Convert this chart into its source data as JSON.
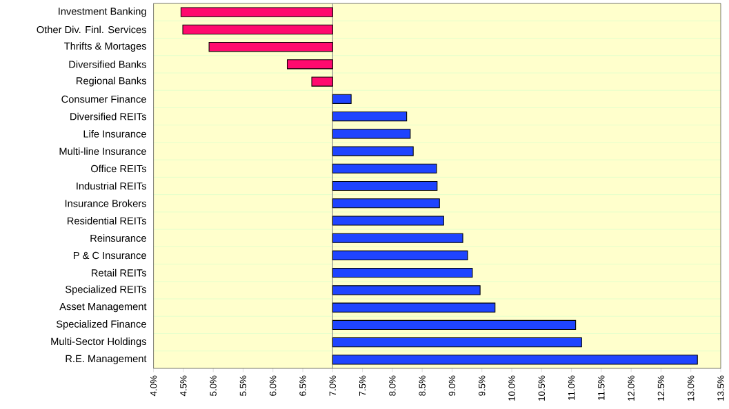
{
  "chart_data": {
    "type": "bar",
    "orientation": "horizontal",
    "categories": [
      "Investment Banking",
      "Other Div. Finl. Services",
      "Thrifts & Mortages",
      "Diversified Banks",
      "Regional Banks",
      "Consumer Finance",
      "Diversified REITs",
      "Life Insurance",
      "Multi-line Insurance",
      "Office REITs",
      "Industrial REITs",
      "Insurance Brokers",
      "Residential REITs",
      "Reinsurance",
      "P & C Insurance",
      "Retail REITs",
      "Specialized REITs",
      "Asset Management",
      "Specialized Finance",
      "Multi-Sector Holdings",
      "R.E. Management"
    ],
    "base": [
      7.0,
      7.0,
      7.0,
      7.0,
      7.0,
      7.0,
      7.0,
      7.0,
      7.0,
      7.0,
      7.0,
      7.0,
      7.0,
      7.0,
      7.0,
      7.0,
      7.0,
      7.0,
      7.0,
      7.0,
      7.0
    ],
    "values": [
      -2.54,
      -2.51,
      -2.07,
      -0.76,
      -0.35,
      0.31,
      1.24,
      1.3,
      1.35,
      1.74,
      1.75,
      1.79,
      1.86,
      2.18,
      2.26,
      2.34,
      2.47,
      2.72,
      4.07,
      4.17,
      6.11
    ],
    "colors": [
      "#ff0a6e",
      "#ff0a6e",
      "#ff0a6e",
      "#ff0a6e",
      "#ff0a6e",
      "#1f44ff",
      "#1f44ff",
      "#1f44ff",
      "#1f44ff",
      "#1f44ff",
      "#1f44ff",
      "#1f44ff",
      "#1f44ff",
      "#1f44ff",
      "#1f44ff",
      "#1f44ff",
      "#1f44ff",
      "#1f44ff",
      "#1f44ff",
      "#1f44ff",
      "#1f44ff"
    ],
    "xlim": [
      4.0,
      13.5
    ],
    "xticks": [
      {
        "value": 4.0,
        "label": "4.0%"
      },
      {
        "value": 4.5,
        "label": "4.5%"
      },
      {
        "value": 5.0,
        "label": "5.0%"
      },
      {
        "value": 5.5,
        "label": "5.5%"
      },
      {
        "value": 6.0,
        "label": "6.0%"
      },
      {
        "value": 6.5,
        "label": "6.5%"
      },
      {
        "value": 7.0,
        "label": "7.0%"
      },
      {
        "value": 7.5,
        "label": "7.5%"
      },
      {
        "value": 8.0,
        "label": "8.0%"
      },
      {
        "value": 8.5,
        "label": "8.5%"
      },
      {
        "value": 9.0,
        "label": "9.0%"
      },
      {
        "value": 9.5,
        "label": "9.5%"
      },
      {
        "value": 10.0,
        "label": "10.0%"
      },
      {
        "value": 10.5,
        "label": "10.5%"
      },
      {
        "value": 11.0,
        "label": "11.0%"
      },
      {
        "value": 11.5,
        "label": "11.5%"
      },
      {
        "value": 12.0,
        "label": "12.0%"
      },
      {
        "value": 12.5,
        "label": "12.5%"
      },
      {
        "value": 13.0,
        "label": "13.0%"
      },
      {
        "value": 13.5,
        "label": "13.5%"
      }
    ],
    "ref_lines": [
      {
        "axis": "x",
        "value": 7.0,
        "color": "#888888"
      }
    ],
    "grid": "y"
  }
}
